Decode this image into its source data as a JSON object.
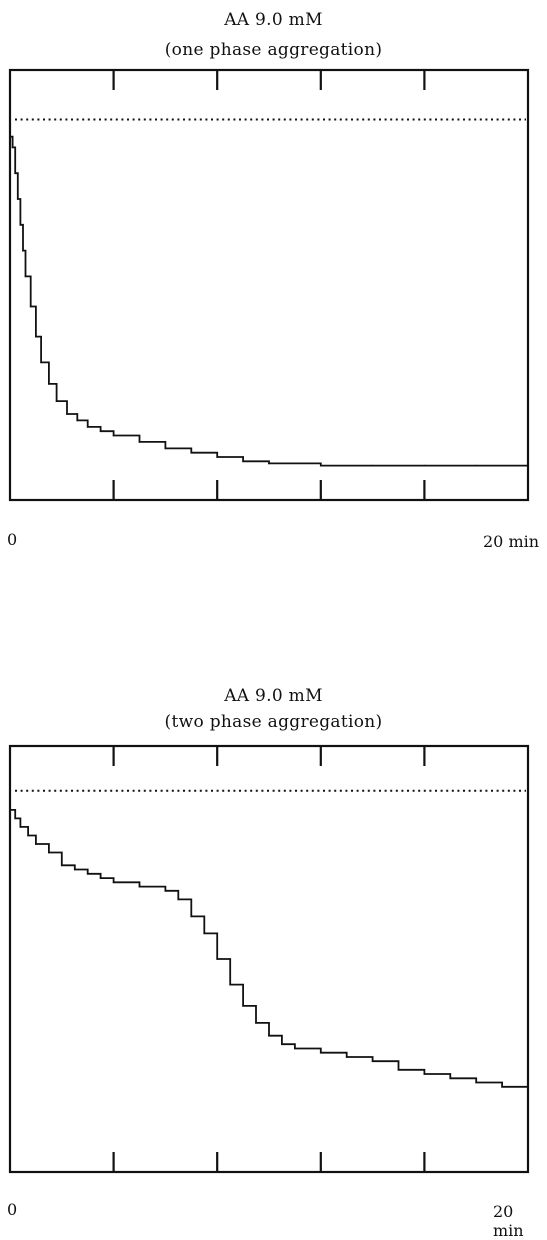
{
  "chart_data": [
    {
      "type": "line",
      "title": "AA 9.0 mM",
      "subtitle": "(one phase aggregation)",
      "x_start_label": "0",
      "x_end_label": "20 min",
      "xlim": [
        0,
        20
      ],
      "x": [
        0,
        0.1,
        0.2,
        0.3,
        0.4,
        0.5,
        0.6,
        0.8,
        1.0,
        1.2,
        1.5,
        1.8,
        2.2,
        2.6,
        3.0,
        3.5,
        4.0,
        5.0,
        6.0,
        7.0,
        8.0,
        9.0,
        10.0,
        12.0,
        14.0,
        16.0,
        18.0,
        20.0
      ],
      "y": [
        0.845,
        0.82,
        0.76,
        0.7,
        0.64,
        0.58,
        0.52,
        0.45,
        0.38,
        0.32,
        0.27,
        0.23,
        0.2,
        0.185,
        0.17,
        0.16,
        0.15,
        0.135,
        0.12,
        0.11,
        0.1,
        0.09,
        0.085,
        0.08,
        0.08,
        0.08,
        0.08,
        0.08
      ],
      "reference_y": 0.885,
      "ticks_x": [
        4,
        8,
        12,
        16
      ]
    },
    {
      "type": "line",
      "title": "AA 9.0 mM",
      "subtitle": "(two phase aggregation)",
      "x_start_label": "0",
      "x_end_label": "20 min",
      "xlim": [
        0,
        20
      ],
      "x": [
        0,
        0.2,
        0.4,
        0.7,
        1.0,
        1.5,
        2.0,
        2.5,
        3.0,
        3.5,
        4.0,
        5.0,
        6.0,
        6.5,
        7.0,
        7.5,
        8.0,
        8.5,
        9.0,
        9.5,
        10.0,
        10.5,
        11.0,
        12.0,
        13.0,
        14.0,
        15.0,
        16.0,
        17.0,
        18.0,
        19.0,
        20.0
      ],
      "y": [
        0.85,
        0.83,
        0.81,
        0.79,
        0.77,
        0.75,
        0.72,
        0.71,
        0.7,
        0.69,
        0.68,
        0.67,
        0.66,
        0.64,
        0.6,
        0.56,
        0.5,
        0.44,
        0.39,
        0.35,
        0.32,
        0.3,
        0.29,
        0.28,
        0.27,
        0.26,
        0.24,
        0.23,
        0.22,
        0.21,
        0.2,
        0.2
      ],
      "reference_y": 0.895,
      "ticks_x": [
        4,
        8,
        12,
        16
      ]
    }
  ]
}
